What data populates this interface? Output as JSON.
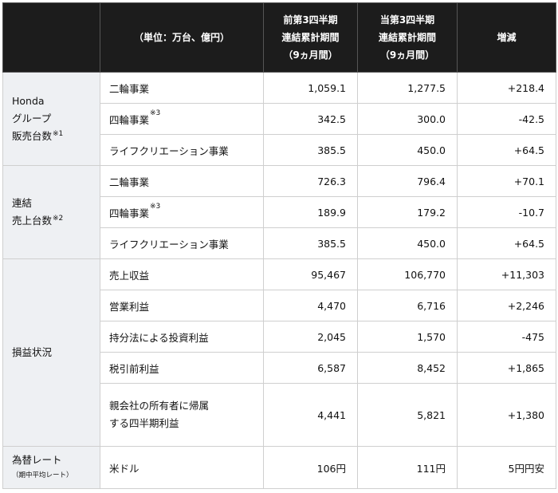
{
  "header": {
    "col0": "",
    "col1": "（単位：万台、億円）",
    "col2": [
      "前第3四半期",
      "連結累計期間",
      "（9ヵ月間）"
    ],
    "col3": [
      "当第3四半期",
      "連結累計期間",
      "（9ヵ月間）"
    ],
    "col4": "増減"
  },
  "groups": {
    "honda": {
      "lines": [
        "Honda",
        "グループ",
        "販売台数"
      ],
      "note": "※1"
    },
    "consolidated": {
      "lines": [
        "連結",
        "売上台数"
      ],
      "note": "※2"
    },
    "pl": {
      "label": "損益状況"
    },
    "fx": {
      "label": "為替レート",
      "sub": "（期中平均レート）"
    }
  },
  "rows": {
    "honda": [
      {
        "item": "二輪事業",
        "note": "",
        "prev": "1,059.1",
        "curr": "1,277.5",
        "diff": "+218.4"
      },
      {
        "item": "四輪事業",
        "note": "※3",
        "prev": "342.5",
        "curr": "300.0",
        "diff": "-42.5"
      },
      {
        "item": "ライフクリエーション事業",
        "note": "",
        "prev": "385.5",
        "curr": "450.0",
        "diff": "+64.5"
      }
    ],
    "consolidated": [
      {
        "item": "二輪事業",
        "note": "",
        "prev": "726.3",
        "curr": "796.4",
        "diff": "+70.1"
      },
      {
        "item": "四輪事業",
        "note": "※3",
        "prev": "189.9",
        "curr": "179.2",
        "diff": "-10.7"
      },
      {
        "item": "ライフクリエーション事業",
        "note": "",
        "prev": "385.5",
        "curr": "450.0",
        "diff": "+64.5"
      }
    ],
    "pl": [
      {
        "item": "売上収益",
        "prev": "95,467",
        "curr": "106,770",
        "diff": "+11,303"
      },
      {
        "item": "営業利益",
        "prev": "4,470",
        "curr": "6,716",
        "diff": "+2,246"
      },
      {
        "item": "持分法による投資利益",
        "prev": "2,045",
        "curr": "1,570",
        "diff": "-475"
      },
      {
        "item": "税引前利益",
        "prev": "6,587",
        "curr": "8,452",
        "diff": "+1,865"
      },
      {
        "item_lines": [
          "親会社の所有者に帰属",
          "する四半期利益"
        ],
        "prev": "4,441",
        "curr": "5,821",
        "diff": "+1,380"
      }
    ],
    "fx": [
      {
        "item": "米ドル",
        "prev": "106円",
        "curr": "111円",
        "diff": "5円円安"
      }
    ]
  }
}
